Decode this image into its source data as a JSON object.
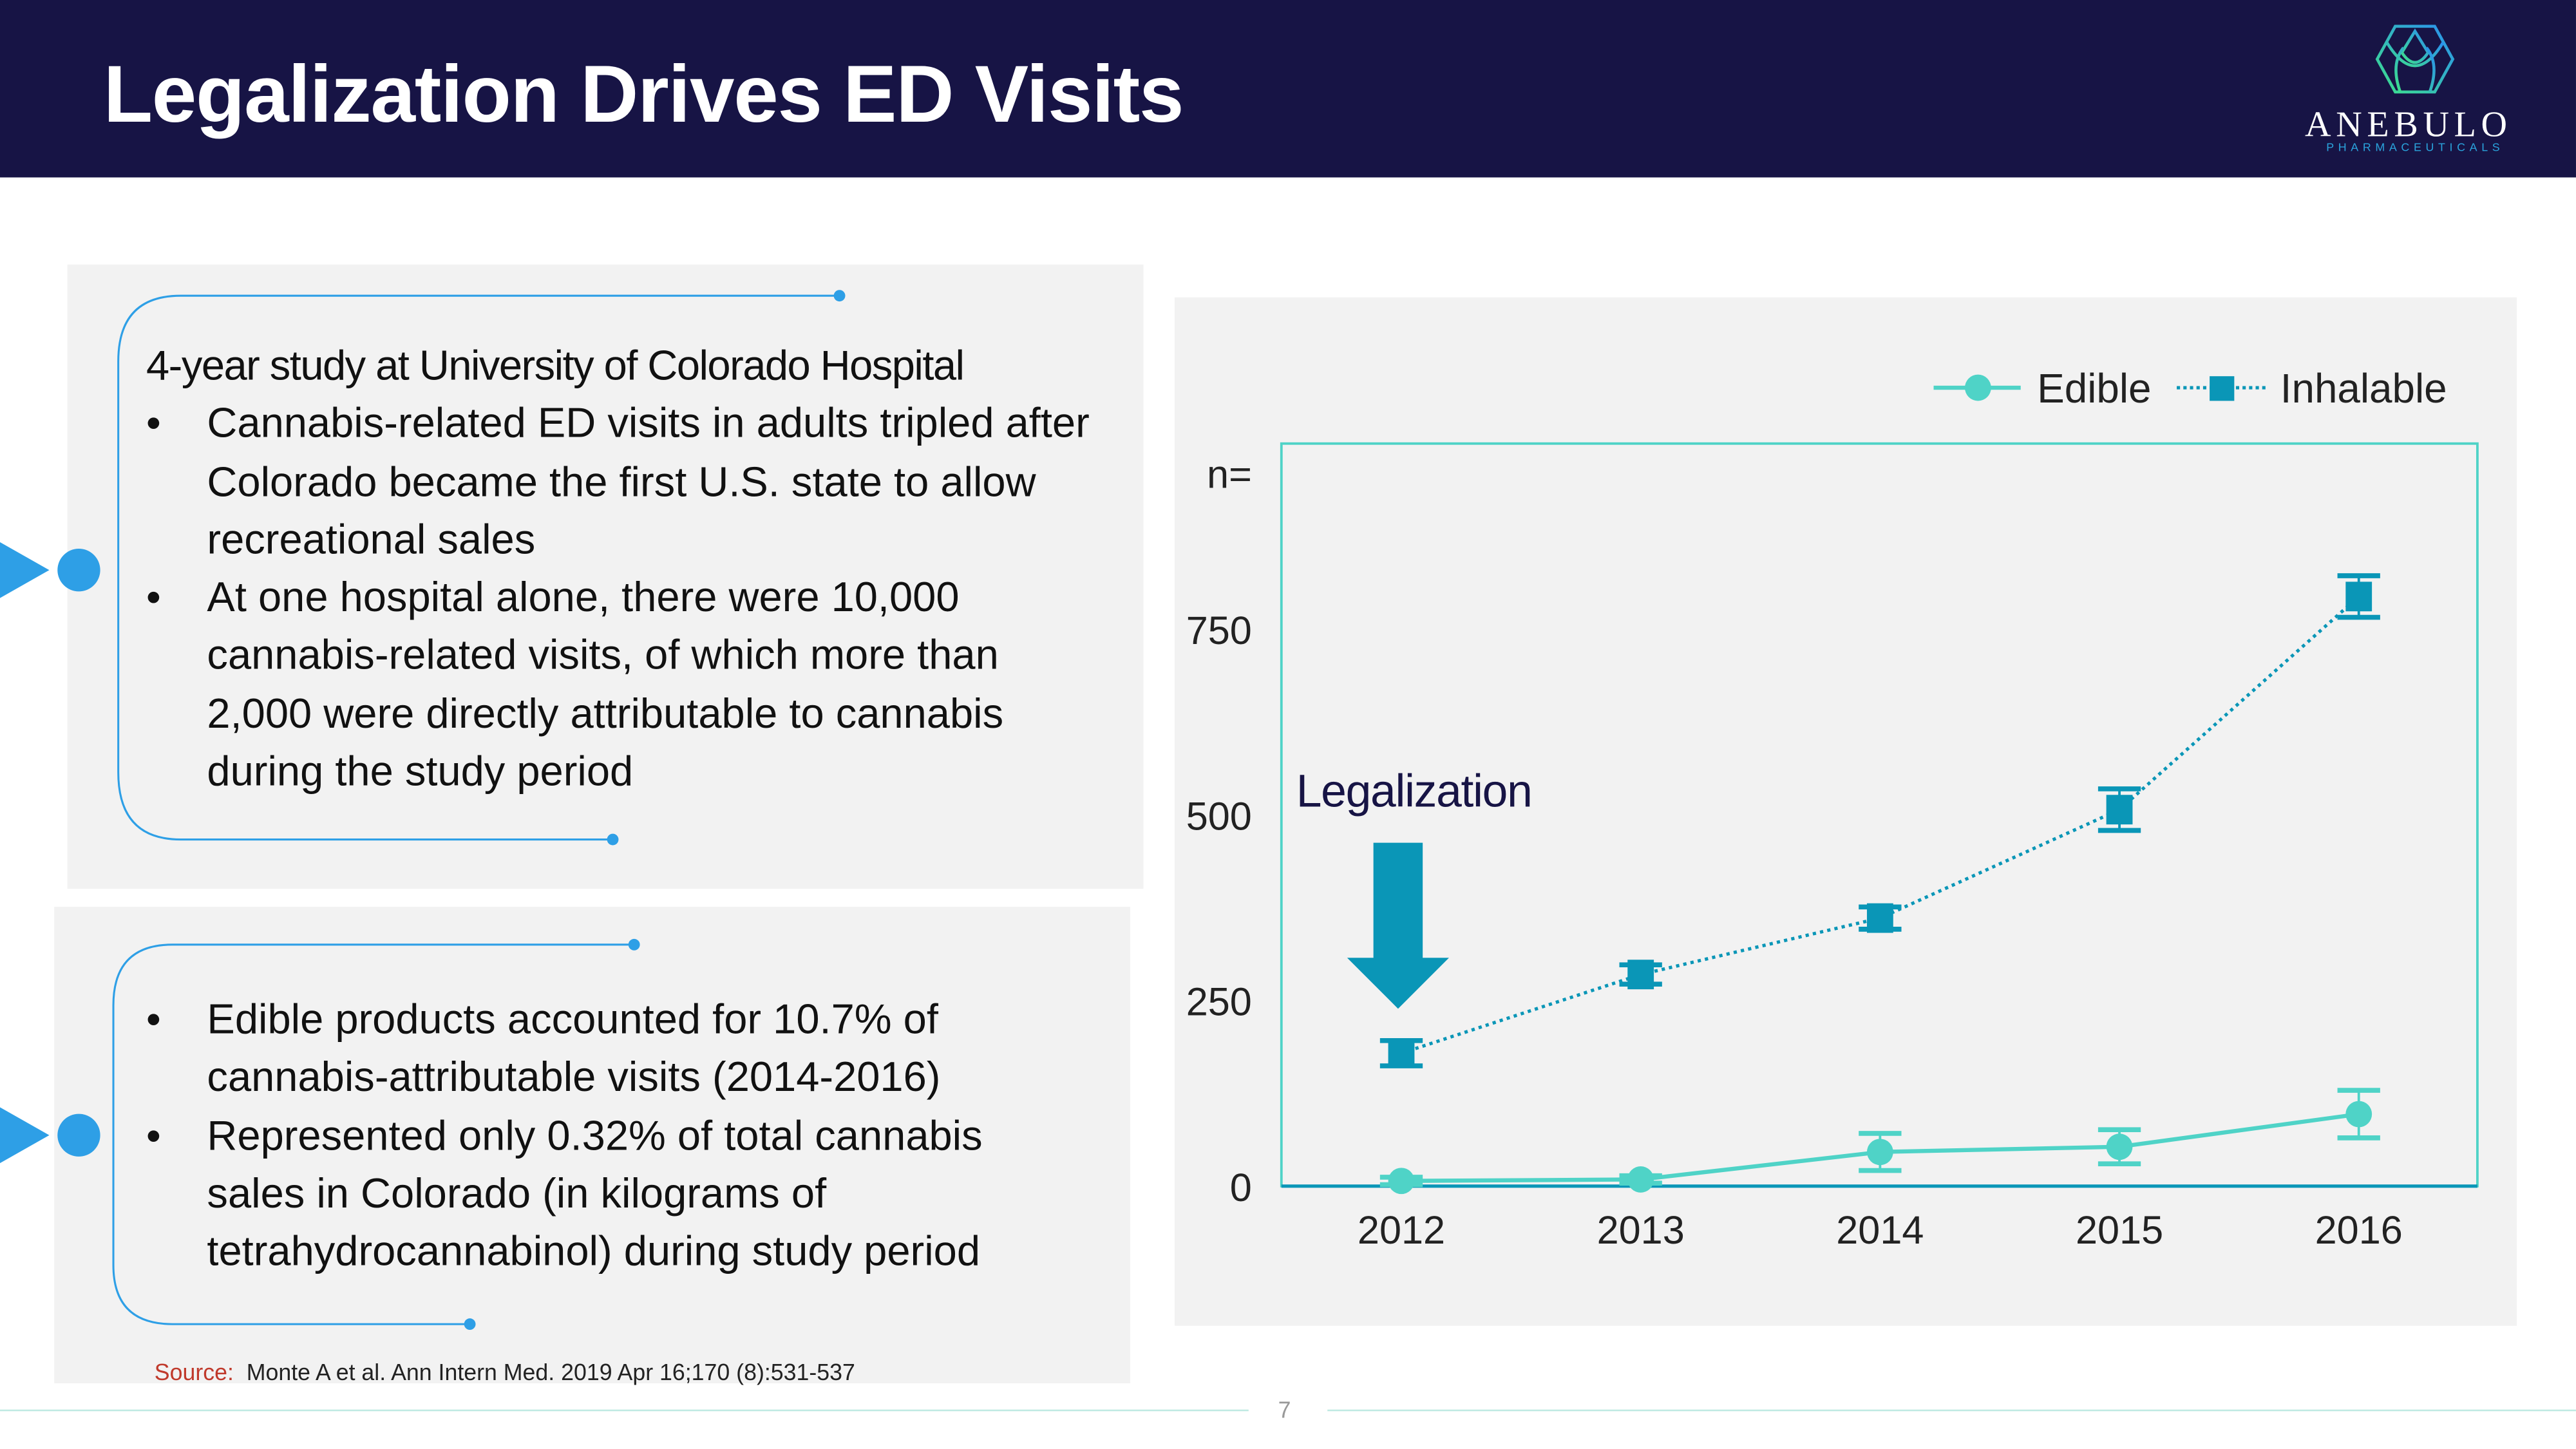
{
  "header": {
    "title": "Legalization Drives ED Visits"
  },
  "logo": {
    "name": "ANEBULO",
    "subtitle": "PHARMACEUTICALS",
    "icon": "hexagon-logo-icon"
  },
  "panel1": {
    "heading": "4-year study at University of Colorado Hospital",
    "bullets": [
      "Cannabis-related ED visits in adults tripled after Colorado became the first U.S. state to allow recreational sales",
      "At one hospital alone, there were 10,000 cannabis-related visits, of which more than 2,000 were directly attributable to cannabis during the study period"
    ]
  },
  "panel2": {
    "bullets": [
      "Edible products accounted for 10.7% of cannabis-attributable visits (2014-2016)",
      "Represented only 0.32% of total cannabis sales in Colorado (in kilograms of tetrahydrocannabinol) during study period"
    ]
  },
  "source": {
    "label": "Source:",
    "text": "Monte A et al. Ann Intern Med. 2019 Apr 16;170 (8):531-537"
  },
  "page_number": "7",
  "colors": {
    "header_bg": "#171445",
    "accent_blue": "#2e9fe6",
    "edible": "#4fd3c7",
    "inhalable": "#0a96b7",
    "annotation": "#171445"
  },
  "chart_data": {
    "type": "line",
    "categories": [
      "2012",
      "2013",
      "2014",
      "2015",
      "2016"
    ],
    "ylabel": "n=",
    "ylim": [
      0,
      1000
    ],
    "yticks": [
      0,
      250,
      500,
      750
    ],
    "grid": false,
    "legend_position": "top-right",
    "series": [
      {
        "name": "Edible",
        "values": [
          7,
          9,
          46,
          53,
          97
        ],
        "error": [
          5,
          5,
          25,
          23,
          32
        ],
        "marker": "circle",
        "line": "solid"
      },
      {
        "name": "Inhalable",
        "values": [
          179,
          285,
          361,
          507,
          794
        ],
        "error": [
          17,
          13,
          15,
          28,
          28
        ],
        "marker": "square",
        "line": "dotted"
      }
    ],
    "annotation": {
      "text": "Legalization",
      "category": "2012",
      "marker": "down-arrow"
    }
  }
}
